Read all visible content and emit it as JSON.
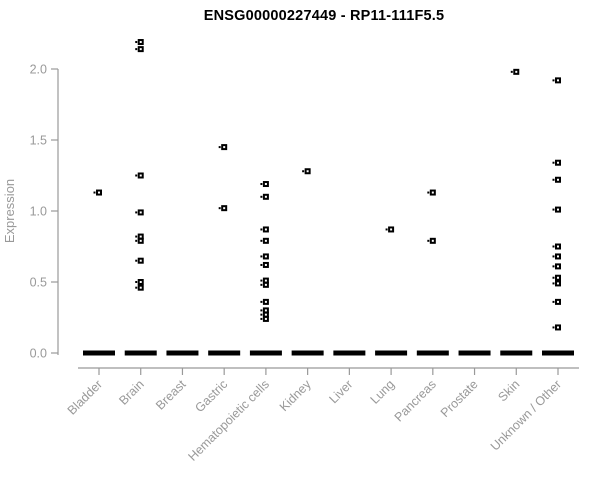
{
  "chart_data": {
    "type": "scatter",
    "title": "ENSG00000227449 - RP11-111F5.5",
    "ylabel": "Expression",
    "xlabel": "",
    "ylim": [
      0.0,
      2.2
    ],
    "yticks": [
      "0.0",
      "0.5",
      "1.0",
      "1.5",
      "2.0"
    ],
    "ytick_values": [
      0.0,
      0.5,
      1.0,
      1.5,
      2.0
    ],
    "grid": false,
    "legend": "none",
    "categories": [
      "Bladder",
      "Brain",
      "Breast",
      "Gastric",
      "Hematopoietic cells",
      "Kidney",
      "Liver",
      "Lung",
      "Pancreas",
      "Prostate",
      "Skin",
      "Unknown / Other"
    ],
    "points_by_category": [
      {
        "category": "Bladder",
        "values": [
          1.13
        ]
      },
      {
        "category": "Brain",
        "values": [
          2.19,
          2.14,
          1.25,
          0.99,
          0.82,
          0.79,
          0.65,
          0.5,
          0.46
        ]
      },
      {
        "category": "Breast",
        "values": []
      },
      {
        "category": "Gastric",
        "values": [
          1.45,
          1.02
        ]
      },
      {
        "category": "Hematopoietic cells",
        "values": [
          1.19,
          1.1,
          0.87,
          0.79,
          0.68,
          0.62,
          0.51,
          0.48,
          0.36,
          0.3,
          0.27,
          0.24
        ]
      },
      {
        "category": "Kidney",
        "values": [
          1.28
        ]
      },
      {
        "category": "Liver",
        "values": []
      },
      {
        "category": "Lung",
        "values": [
          0.87
        ]
      },
      {
        "category": "Pancreas",
        "values": [
          1.13,
          0.79
        ]
      },
      {
        "category": "Prostate",
        "values": []
      },
      {
        "category": "Skin",
        "values": [
          1.98
        ]
      },
      {
        "category": "Unknown / Other",
        "values": [
          1.92,
          1.34,
          1.22,
          1.01,
          0.75,
          0.68,
          0.61,
          0.53,
          0.49,
          0.36,
          0.18
        ]
      }
    ],
    "zero_cluster_dash_all_categories": true,
    "colors": {
      "point": "#000000",
      "point_center": "#ffffff",
      "axis": "#999999",
      "tick_label": "#999999",
      "title": "#000000",
      "background": "#ffffff"
    }
  }
}
